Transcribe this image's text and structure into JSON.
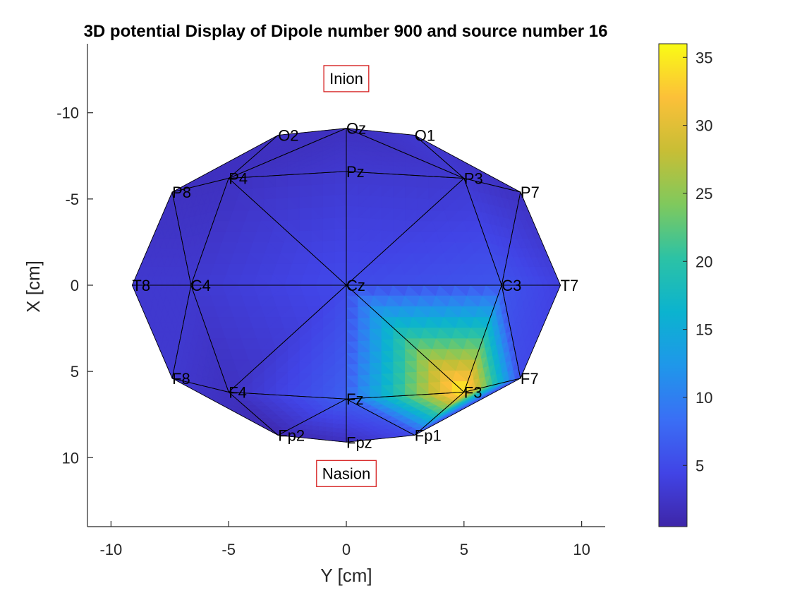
{
  "chart_data": {
    "type": "heatmap",
    "title": "3D potential Display of Dipole number 900 and source number 16",
    "xlabel": "Y [cm]",
    "ylabel": "X [cm]",
    "xlim": [
      -11,
      11
    ],
    "ylim": [
      -14,
      14
    ],
    "y_reversed": true,
    "x_ticks": [
      -10,
      -5,
      0,
      5,
      10
    ],
    "x_tick_labels": [
      "-10",
      "-5",
      "0",
      "5",
      "10"
    ],
    "y_ticks": [
      -10,
      -5,
      0,
      5,
      10
    ],
    "y_tick_labels": [
      "-10",
      "-5",
      "0",
      "5",
      "10"
    ],
    "annotations": [
      {
        "text": "Inion",
        "x": 0,
        "y": -12
      },
      {
        "text": "Nasion",
        "x": 0,
        "y": 10.9
      }
    ],
    "electrodes": [
      {
        "label": "Oz",
        "x": 0.0,
        "y": -9.1,
        "value": 2
      },
      {
        "label": "O1",
        "x": 2.9,
        "y": -8.7,
        "value": 3
      },
      {
        "label": "O2",
        "x": -2.9,
        "y": -8.7,
        "value": 2
      },
      {
        "label": "P3",
        "x": 5.0,
        "y": -6.2,
        "value": 3
      },
      {
        "label": "P4",
        "x": -5.0,
        "y": -6.2,
        "value": 2
      },
      {
        "label": "P7",
        "x": 7.4,
        "y": -5.4,
        "value": 2
      },
      {
        "label": "P8",
        "x": -7.4,
        "y": -5.4,
        "value": 2
      },
      {
        "label": "Pz",
        "x": 0.0,
        "y": -6.6,
        "value": 3
      },
      {
        "label": "C3",
        "x": 6.6,
        "y": 0.0,
        "value": 6
      },
      {
        "label": "C4",
        "x": -6.6,
        "y": 0.0,
        "value": 3
      },
      {
        "label": "Cz",
        "x": 0.0,
        "y": 0.0,
        "value": 5
      },
      {
        "label": "T7",
        "x": 9.1,
        "y": 0.0,
        "value": 4
      },
      {
        "label": "T8",
        "x": -9.1,
        "y": 0.0,
        "value": 3
      },
      {
        "label": "F3",
        "x": 5.0,
        "y": 6.2,
        "value": 36
      },
      {
        "label": "F4",
        "x": -5.0,
        "y": 6.2,
        "value": 2
      },
      {
        "label": "F7",
        "x": 7.4,
        "y": 5.4,
        "value": 5
      },
      {
        "label": "F8",
        "x": -7.4,
        "y": 5.4,
        "value": 3
      },
      {
        "label": "Fz",
        "x": 0.0,
        "y": 6.6,
        "value": 7
      },
      {
        "label": "Fp1",
        "x": 2.9,
        "y": 8.7,
        "value": 5
      },
      {
        "label": "Fp2",
        "x": -2.9,
        "y": 8.7,
        "value": 1
      },
      {
        "label": "Fpz",
        "x": 0.0,
        "y": 9.1,
        "value": 2
      }
    ],
    "triangles": [
      [
        "Pz",
        "P4",
        "Oz"
      ],
      [
        "Pz",
        "Oz",
        "P3"
      ],
      [
        "P4",
        "O2",
        "Oz"
      ],
      [
        "P3",
        "Oz",
        "O1"
      ],
      [
        "P4",
        "P8",
        "O2"
      ],
      [
        "P3",
        "O1",
        "P7"
      ],
      [
        "Cz",
        "P4",
        "Pz"
      ],
      [
        "Cz",
        "Pz",
        "P3"
      ],
      [
        "Cz",
        "C4",
        "P4"
      ],
      [
        "Cz",
        "P3",
        "C3"
      ],
      [
        "C4",
        "P8",
        "P4"
      ],
      [
        "C3",
        "P3",
        "P7"
      ],
      [
        "C4",
        "T8",
        "P8"
      ],
      [
        "C3",
        "P7",
        "T7"
      ],
      [
        "Cz",
        "F4",
        "C4"
      ],
      [
        "Cz",
        "Fz",
        "F4"
      ],
      [
        "Cz",
        "C3",
        "F3"
      ],
      [
        "Cz",
        "F3",
        "Fz"
      ],
      [
        "C4",
        "F4",
        "F8"
      ],
      [
        "C4",
        "F8",
        "T8"
      ],
      [
        "C3",
        "F7",
        "F3"
      ],
      [
        "C3",
        "T7",
        "F7"
      ],
      [
        "Fz",
        "Fpz",
        "Fp2"
      ],
      [
        "Fz",
        "Fp2",
        "F4"
      ],
      [
        "Fz",
        "F3",
        "Fp1"
      ],
      [
        "Fz",
        "Fp1",
        "Fpz"
      ],
      [
        "F4",
        "Fp2",
        "F8"
      ],
      [
        "F3",
        "F7",
        "Fp1"
      ]
    ],
    "colorbar": {
      "range": [
        0.5,
        36
      ],
      "ticks": [
        5,
        10,
        15,
        20,
        25,
        30,
        35
      ],
      "tick_labels": [
        "5",
        "10",
        "15",
        "20",
        "25",
        "30",
        "35"
      ],
      "colormap": "parula",
      "colors": [
        "#3e26a8",
        "#4144e6",
        "#3a6ff5",
        "#1f97ea",
        "#0bb3cf",
        "#2cc2a5",
        "#7fc95d",
        "#c8be35",
        "#fcc039",
        "#f9fb15"
      ]
    }
  }
}
